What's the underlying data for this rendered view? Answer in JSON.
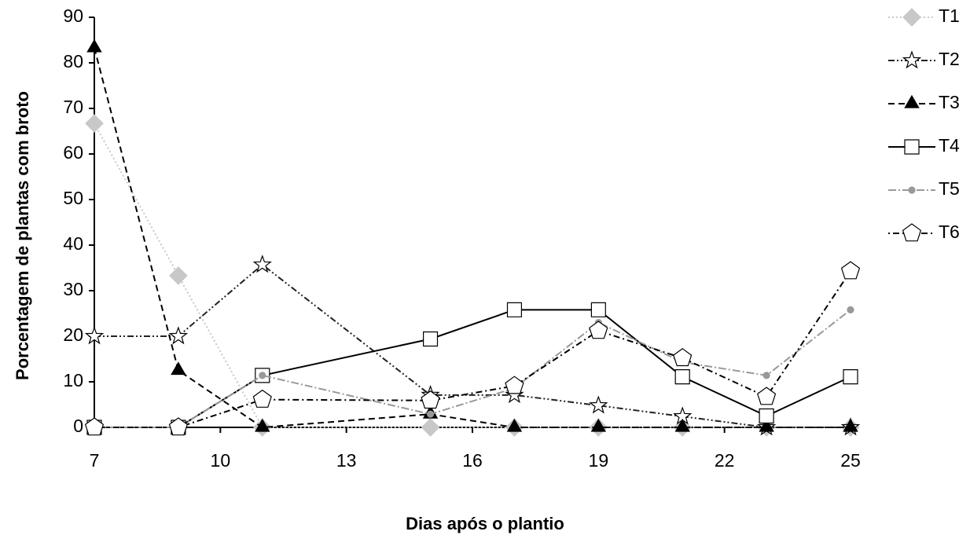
{
  "chart_data": {
    "type": "line",
    "x_label": "Dias após o plantio",
    "y_label": "Porcentagem de plantas com broto",
    "x": [
      7,
      9,
      11,
      15,
      17,
      19,
      21,
      23,
      25
    ],
    "xlim": [
      7,
      25
    ],
    "xticks": [
      7,
      10,
      13,
      16,
      19,
      22,
      25
    ],
    "ylim": [
      0,
      90
    ],
    "yticks": [
      0,
      10,
      20,
      30,
      40,
      50,
      60,
      70,
      80,
      90
    ],
    "legend": "right",
    "series": [
      {
        "name": "T1",
        "color": "#c8c8c8",
        "dash": "2,3",
        "marker": "diamond",
        "fill": "#c8c8c8",
        "values": [
          66.7,
          33.3,
          0,
          0,
          0,
          0,
          0,
          0,
          0
        ]
      },
      {
        "name": "T2",
        "color": "#222222",
        "dash": "8,3,2,3,2,3",
        "marker": "star",
        "fill": "#ffffff",
        "values": [
          20,
          20,
          35.7,
          7.1,
          7.1,
          4.8,
          2.4,
          0,
          0
        ]
      },
      {
        "name": "T3",
        "color": "#000000",
        "dash": "8,5",
        "marker": "triangle",
        "fill": "#000000",
        "values": [
          83.3,
          12.5,
          0,
          2.9,
          0,
          0,
          0,
          0,
          0
        ]
      },
      {
        "name": "T4",
        "color": "#000000",
        "dash": "none",
        "marker": "square",
        "fill": "#ffffff",
        "values": [
          0,
          0,
          11.4,
          19.4,
          25.8,
          25.8,
          11.1,
          2.5,
          11.1
        ]
      },
      {
        "name": "T5",
        "color": "#999999",
        "dash": "10,3,2,3",
        "marker": "circle",
        "fill": "#999999",
        "values": [
          0,
          0,
          11.4,
          2.9,
          8.6,
          23,
          14.3,
          11.4,
          25.8
        ]
      },
      {
        "name": "T6",
        "color": "#000000",
        "dash": "2,4,8,4",
        "marker": "pentagon",
        "fill": "#ffffff",
        "values": [
          0,
          0,
          6.1,
          5.9,
          9.1,
          21.2,
          15.2,
          6.7,
          34.3
        ]
      }
    ]
  }
}
